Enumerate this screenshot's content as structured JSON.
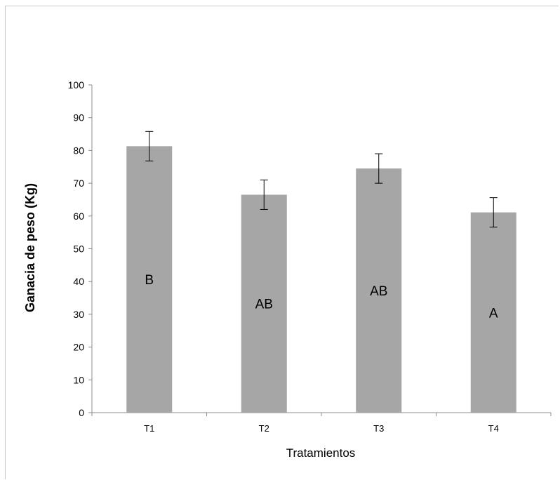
{
  "chart_data": {
    "type": "bar",
    "categories": [
      "T1",
      "T2",
      "T3",
      "T4"
    ],
    "values": [
      81.3,
      66.5,
      74.5,
      61.1
    ],
    "error": [
      4.5,
      4.5,
      4.5,
      4.5
    ],
    "letters": [
      "B",
      "AB",
      "AB",
      "A"
    ],
    "title": "",
    "xlabel": "Tratamientos",
    "ylabel": "Ganacia de peso (Kg)",
    "ylim": [
      0,
      100
    ],
    "yticks": [
      0,
      10,
      20,
      30,
      40,
      50,
      60,
      70,
      80,
      90,
      100
    ],
    "bar_color": "#a6a6a6",
    "grid": false,
    "legend": "none"
  }
}
